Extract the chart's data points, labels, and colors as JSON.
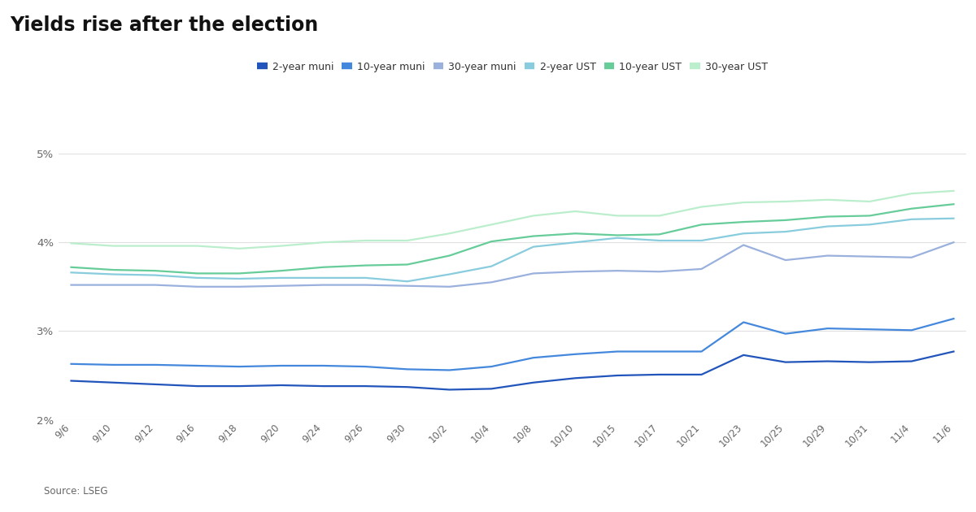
{
  "title": "Yields rise after the election",
  "source": "Source: LSEG",
  "x_labels": [
    "9/6",
    "9/10",
    "9/12",
    "9/16",
    "9/18",
    "9/20",
    "9/24",
    "9/26",
    "9/30",
    "10/2",
    "10/4",
    "10/8",
    "10/10",
    "10/15",
    "10/17",
    "10/21",
    "10/23",
    "10/25",
    "10/29",
    "10/31",
    "11/4",
    "11/6"
  ],
  "series": {
    "2-year muni": {
      "color": "#2255bb",
      "linewidth": 1.6,
      "values": [
        2.44,
        2.42,
        2.4,
        2.38,
        2.38,
        2.39,
        2.38,
        2.38,
        2.37,
        2.34,
        2.35,
        2.42,
        2.47,
        2.5,
        2.51,
        2.51,
        2.73,
        2.65,
        2.66,
        2.65,
        2.66,
        2.77
      ]
    },
    "10-year muni": {
      "color": "#4488dd",
      "linewidth": 1.6,
      "values": [
        2.63,
        2.62,
        2.62,
        2.61,
        2.6,
        2.61,
        2.61,
        2.6,
        2.57,
        2.56,
        2.6,
        2.7,
        2.74,
        2.77,
        2.77,
        2.77,
        3.1,
        2.97,
        3.03,
        3.02,
        3.01,
        3.14
      ]
    },
    "30-year muni": {
      "color": "#9ab0dd",
      "linewidth": 1.6,
      "values": [
        3.52,
        3.52,
        3.52,
        3.5,
        3.5,
        3.51,
        3.52,
        3.52,
        3.51,
        3.5,
        3.55,
        3.65,
        3.67,
        3.68,
        3.67,
        3.7,
        3.97,
        3.8,
        3.85,
        3.84,
        3.83,
        4.0
      ]
    },
    "2-year UST": {
      "color": "#88ccdd",
      "linewidth": 1.6,
      "values": [
        3.66,
        3.64,
        3.63,
        3.6,
        3.59,
        3.6,
        3.6,
        3.6,
        3.56,
        3.64,
        3.73,
        3.95,
        4.0,
        4.05,
        4.02,
        4.02,
        4.1,
        4.12,
        4.18,
        4.2,
        4.26,
        4.27
      ]
    },
    "10-year UST": {
      "color": "#66cc99",
      "linewidth": 1.6,
      "values": [
        3.72,
        3.69,
        3.68,
        3.65,
        3.65,
        3.68,
        3.72,
        3.74,
        3.75,
        3.85,
        4.01,
        4.07,
        4.1,
        4.08,
        4.09,
        4.2,
        4.23,
        4.25,
        4.29,
        4.3,
        4.38,
        4.43
      ]
    },
    "30-year UST": {
      "color": "#bbeecc",
      "linewidth": 1.6,
      "values": [
        3.99,
        3.96,
        3.96,
        3.96,
        3.93,
        3.96,
        4.0,
        4.02,
        4.02,
        4.1,
        4.2,
        4.3,
        4.35,
        4.3,
        4.3,
        4.4,
        4.45,
        4.46,
        4.48,
        4.46,
        4.55,
        4.58
      ]
    }
  },
  "ylim": [
    2.0,
    5.0
  ],
  "yticks": [
    2.0,
    3.0,
    4.0,
    5.0
  ],
  "ytick_labels": [
    "2%",
    "3%",
    "4%",
    "5%"
  ],
  "background_color": "#ffffff",
  "legend_order": [
    "2-year muni",
    "10-year muni",
    "30-year muni",
    "2-year UST",
    "10-year UST",
    "30-year UST"
  ],
  "legend_colors": {
    "2-year muni": "#2255bb",
    "10-year muni": "#4488dd",
    "30-year muni": "#9ab0dd",
    "2-year UST": "#88ccdd",
    "10-year UST": "#66cc99",
    "30-year UST": "#bbeecc"
  }
}
